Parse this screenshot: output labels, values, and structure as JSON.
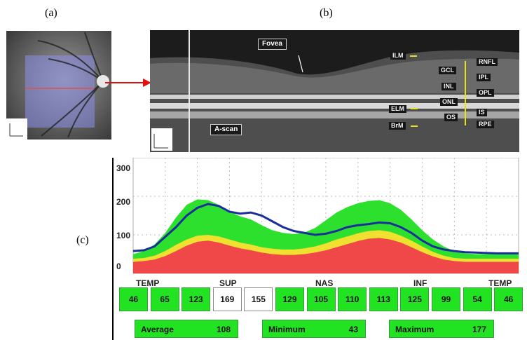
{
  "panels": {
    "a": "(a)",
    "b": "(b)",
    "c": "(c)"
  },
  "oct": {
    "fovea": "Fovea",
    "ascan": "A-scan",
    "layers_left": [
      "ILM",
      "ELM",
      "BrM"
    ],
    "layers_mid": [
      "GCL",
      "INL",
      "ONL",
      "OS"
    ],
    "layers_right": [
      "RNFL",
      "IPL",
      "OPL",
      "IS",
      "RPE"
    ]
  },
  "chart_data": {
    "type": "area",
    "ylim": [
      0,
      300
    ],
    "yticks": [
      "300",
      "200",
      "100",
      "0"
    ],
    "sectors": [
      "TEMP",
      "SUP",
      "NAS",
      "INF",
      "TEMP"
    ],
    "x": [
      0,
      10,
      20,
      30,
      40,
      50,
      60,
      70,
      80,
      90,
      100,
      110,
      120,
      130,
      140,
      150,
      160,
      170,
      180,
      190,
      200,
      210,
      220,
      230,
      240,
      250,
      260,
      270,
      280,
      290,
      300,
      310,
      320,
      330,
      340,
      350,
      360
    ],
    "series": [
      {
        "values": [
          58,
          60,
          70,
          95,
          120,
          150,
          170,
          180,
          175,
          160,
          155,
          158,
          150,
          135,
          120,
          110,
          105,
          100,
          103,
          110,
          120,
          125,
          128,
          132,
          130,
          120,
          105,
          85,
          70,
          62,
          58,
          55,
          54,
          53,
          52,
          52,
          52
        ]
      }
    ],
    "normative_bands": {
      "red_top": [
        30,
        32,
        36,
        45,
        58,
        72,
        82,
        85,
        80,
        72,
        65,
        60,
        54,
        50,
        48,
        48,
        50,
        54,
        60,
        68,
        76,
        84,
        90,
        92,
        88,
        80,
        68,
        55,
        44,
        36,
        32,
        30,
        30,
        30,
        30,
        30,
        30
      ],
      "yellow_top": [
        38,
        40,
        46,
        58,
        74,
        88,
        98,
        100,
        96,
        88,
        80,
        75,
        68,
        64,
        62,
        62,
        65,
        70,
        78,
        88,
        96,
        104,
        110,
        112,
        108,
        98,
        85,
        70,
        56,
        46,
        40,
        38,
        38,
        38,
        38,
        38,
        38
      ],
      "green_top": [
        50,
        58,
        75,
        105,
        145,
        178,
        192,
        190,
        178,
        160,
        148,
        140,
        125,
        112,
        105,
        102,
        106,
        118,
        138,
        158,
        172,
        182,
        188,
        190,
        182,
        165,
        140,
        112,
        88,
        70,
        58,
        52,
        50,
        50,
        50,
        50,
        50
      ]
    }
  },
  "cells": [
    {
      "value": "46",
      "normal": true
    },
    {
      "value": "65",
      "normal": true
    },
    {
      "value": "123",
      "normal": true
    },
    {
      "value": "169",
      "normal": false
    },
    {
      "value": "155",
      "normal": false
    },
    {
      "value": "129",
      "normal": true
    },
    {
      "value": "105",
      "normal": true
    },
    {
      "value": "110",
      "normal": true
    },
    {
      "value": "113",
      "normal": true
    },
    {
      "value": "125",
      "normal": true
    },
    {
      "value": "99",
      "normal": true
    },
    {
      "value": "54",
      "normal": true
    },
    {
      "value": "46",
      "normal": true
    }
  ],
  "stats": {
    "average_label": "Average",
    "average_value": "108",
    "minimum_label": "Minimum",
    "minimum_value": "43",
    "maximum_label": "Maximum",
    "maximum_value": "177"
  },
  "colors": {
    "normal": "#22e322",
    "borderline": "#f0e030",
    "abnormal": "#f04040",
    "line": "#1a2f9a"
  }
}
